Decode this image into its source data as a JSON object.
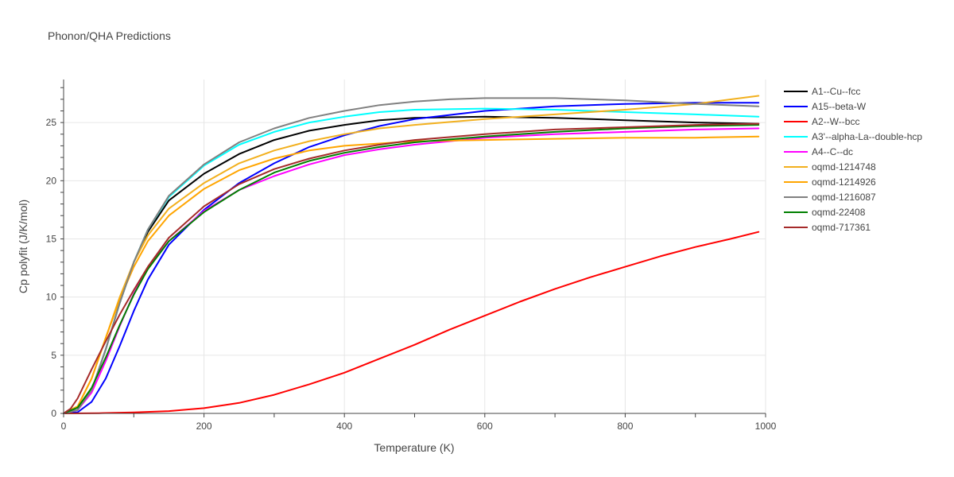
{
  "chart_data": {
    "type": "line",
    "title": "Phonon/QHA Predictions",
    "xlabel": "Temperature (K)",
    "ylabel": "Cp polyfit (J/K/mol)",
    "xlim": [
      0,
      1000
    ],
    "ylim": [
      0,
      28.7
    ],
    "xticks": [
      0,
      200,
      400,
      600,
      800,
      1000
    ],
    "yticks": [
      0,
      5,
      10,
      15,
      20,
      25
    ],
    "grid": true,
    "legend_position": "top-right",
    "series": [
      {
        "name": "A1--Cu--fcc",
        "color": "#000000",
        "points": [
          [
            0,
            0
          ],
          [
            20,
            0.3
          ],
          [
            40,
            2
          ],
          [
            60,
            5.5
          ],
          [
            80,
            9.5
          ],
          [
            100,
            13
          ],
          [
            120,
            15.6
          ],
          [
            150,
            18.3
          ],
          [
            200,
            20.6
          ],
          [
            250,
            22.3
          ],
          [
            300,
            23.5
          ],
          [
            350,
            24.3
          ],
          [
            400,
            24.8
          ],
          [
            450,
            25.2
          ],
          [
            500,
            25.4
          ],
          [
            600,
            25.5
          ],
          [
            700,
            25.4
          ],
          [
            800,
            25.2
          ],
          [
            900,
            25.0
          ],
          [
            990,
            24.9
          ]
        ]
      },
      {
        "name": "A15--beta-W",
        "color": "#0000ff",
        "points": [
          [
            0,
            0
          ],
          [
            20,
            0.1
          ],
          [
            40,
            1
          ],
          [
            60,
            3
          ],
          [
            80,
            5.8
          ],
          [
            100,
            8.8
          ],
          [
            120,
            11.5
          ],
          [
            150,
            14.5
          ],
          [
            200,
            17.5
          ],
          [
            250,
            19.8
          ],
          [
            300,
            21.5
          ],
          [
            350,
            22.9
          ],
          [
            400,
            23.9
          ],
          [
            450,
            24.7
          ],
          [
            500,
            25.3
          ],
          [
            600,
            26.0
          ],
          [
            700,
            26.4
          ],
          [
            800,
            26.6
          ],
          [
            900,
            26.7
          ],
          [
            990,
            26.7
          ]
        ]
      },
      {
        "name": "A2--W--bcc",
        "color": "#ff0000",
        "points": [
          [
            0,
            0
          ],
          [
            50,
            0.02
          ],
          [
            100,
            0.08
          ],
          [
            150,
            0.2
          ],
          [
            200,
            0.45
          ],
          [
            250,
            0.9
          ],
          [
            300,
            1.6
          ],
          [
            350,
            2.5
          ],
          [
            400,
            3.5
          ],
          [
            450,
            4.7
          ],
          [
            500,
            5.9
          ],
          [
            550,
            7.2
          ],
          [
            600,
            8.4
          ],
          [
            650,
            9.6
          ],
          [
            700,
            10.7
          ],
          [
            750,
            11.7
          ],
          [
            800,
            12.6
          ],
          [
            850,
            13.5
          ],
          [
            900,
            14.3
          ],
          [
            950,
            15.0
          ],
          [
            990,
            15.6
          ]
        ]
      },
      {
        "name": "A3'--alpha-La--double-hcp",
        "color": "#00ffff",
        "points": [
          [
            0,
            0
          ],
          [
            20,
            0.3
          ],
          [
            40,
            2
          ],
          [
            60,
            5.5
          ],
          [
            80,
            9.5
          ],
          [
            100,
            13
          ],
          [
            120,
            15.8
          ],
          [
            150,
            18.6
          ],
          [
            200,
            21.3
          ],
          [
            250,
            23.1
          ],
          [
            300,
            24.2
          ],
          [
            350,
            25.0
          ],
          [
            400,
            25.5
          ],
          [
            450,
            25.9
          ],
          [
            500,
            26.1
          ],
          [
            600,
            26.2
          ],
          [
            700,
            26.1
          ],
          [
            800,
            25.9
          ],
          [
            900,
            25.7
          ],
          [
            990,
            25.5
          ]
        ]
      },
      {
        "name": "A4--C--dc",
        "color": "#ff00ff",
        "points": [
          [
            0,
            0
          ],
          [
            20,
            0.3
          ],
          [
            40,
            1.8
          ],
          [
            60,
            4.5
          ],
          [
            80,
            7.5
          ],
          [
            100,
            10.3
          ],
          [
            120,
            12.5
          ],
          [
            150,
            14.8
          ],
          [
            200,
            17.4
          ],
          [
            250,
            19.2
          ],
          [
            300,
            20.4
          ],
          [
            350,
            21.4
          ],
          [
            400,
            22.2
          ],
          [
            450,
            22.7
          ],
          [
            500,
            23.1
          ],
          [
            600,
            23.7
          ],
          [
            700,
            24.0
          ],
          [
            800,
            24.2
          ],
          [
            900,
            24.4
          ],
          [
            990,
            24.5
          ]
        ]
      },
      {
        "name": "oqmd-1214748",
        "color": "#f2b01e",
        "points": [
          [
            0,
            0
          ],
          [
            20,
            0.6
          ],
          [
            40,
            3
          ],
          [
            60,
            6.5
          ],
          [
            80,
            10
          ],
          [
            100,
            13
          ],
          [
            120,
            15.3
          ],
          [
            150,
            17.6
          ],
          [
            200,
            19.8
          ],
          [
            250,
            21.5
          ],
          [
            300,
            22.6
          ],
          [
            350,
            23.4
          ],
          [
            400,
            24.0
          ],
          [
            450,
            24.5
          ],
          [
            500,
            24.8
          ],
          [
            600,
            25.3
          ],
          [
            700,
            25.7
          ],
          [
            800,
            26.1
          ],
          [
            900,
            26.6
          ],
          [
            990,
            27.3
          ]
        ]
      },
      {
        "name": "oqmd-1214926",
        "color": "#ffa500",
        "points": [
          [
            0,
            0
          ],
          [
            20,
            0.6
          ],
          [
            40,
            3
          ],
          [
            60,
            6.5
          ],
          [
            80,
            9.8
          ],
          [
            100,
            12.6
          ],
          [
            120,
            14.8
          ],
          [
            150,
            17
          ],
          [
            200,
            19.3
          ],
          [
            250,
            20.9
          ],
          [
            300,
            21.9
          ],
          [
            350,
            22.6
          ],
          [
            400,
            23.0
          ],
          [
            450,
            23.2
          ],
          [
            500,
            23.4
          ],
          [
            600,
            23.5
          ],
          [
            700,
            23.6
          ],
          [
            800,
            23.7
          ],
          [
            900,
            23.7
          ],
          [
            990,
            23.8
          ]
        ]
      },
      {
        "name": "oqmd-1216087",
        "color": "#808080",
        "points": [
          [
            0,
            0
          ],
          [
            20,
            0.3
          ],
          [
            40,
            2
          ],
          [
            60,
            5.5
          ],
          [
            80,
            9.5
          ],
          [
            100,
            13
          ],
          [
            120,
            15.8
          ],
          [
            150,
            18.7
          ],
          [
            200,
            21.4
          ],
          [
            250,
            23.3
          ],
          [
            300,
            24.5
          ],
          [
            350,
            25.4
          ],
          [
            400,
            26.0
          ],
          [
            450,
            26.5
          ],
          [
            500,
            26.8
          ],
          [
            550,
            27.0
          ],
          [
            600,
            27.1
          ],
          [
            700,
            27.1
          ],
          [
            800,
            26.9
          ],
          [
            900,
            26.6
          ],
          [
            990,
            26.4
          ]
        ]
      },
      {
        "name": "oqmd-22408",
        "color": "#008000",
        "points": [
          [
            0,
            0
          ],
          [
            20,
            0.5
          ],
          [
            40,
            2.2
          ],
          [
            60,
            4.8
          ],
          [
            80,
            7.6
          ],
          [
            100,
            10.2
          ],
          [
            120,
            12.4
          ],
          [
            150,
            14.8
          ],
          [
            200,
            17.3
          ],
          [
            250,
            19.2
          ],
          [
            300,
            20.7
          ],
          [
            350,
            21.7
          ],
          [
            400,
            22.4
          ],
          [
            450,
            22.9
          ],
          [
            500,
            23.3
          ],
          [
            600,
            23.8
          ],
          [
            700,
            24.2
          ],
          [
            800,
            24.5
          ],
          [
            900,
            24.7
          ],
          [
            990,
            24.8
          ]
        ]
      },
      {
        "name": "oqmd-717361",
        "color": "#a52a2a",
        "points": [
          [
            0,
            0
          ],
          [
            10,
            0.4
          ],
          [
            20,
            1.3
          ],
          [
            40,
            3.8
          ],
          [
            60,
            6.2
          ],
          [
            80,
            8.5
          ],
          [
            100,
            10.6
          ],
          [
            120,
            12.6
          ],
          [
            150,
            15.1
          ],
          [
            200,
            17.8
          ],
          [
            250,
            19.7
          ],
          [
            300,
            21.0
          ],
          [
            350,
            21.9
          ],
          [
            400,
            22.6
          ],
          [
            450,
            23.1
          ],
          [
            500,
            23.5
          ],
          [
            600,
            24.0
          ],
          [
            700,
            24.4
          ],
          [
            800,
            24.6
          ],
          [
            900,
            24.8
          ],
          [
            990,
            24.9
          ]
        ]
      }
    ]
  }
}
